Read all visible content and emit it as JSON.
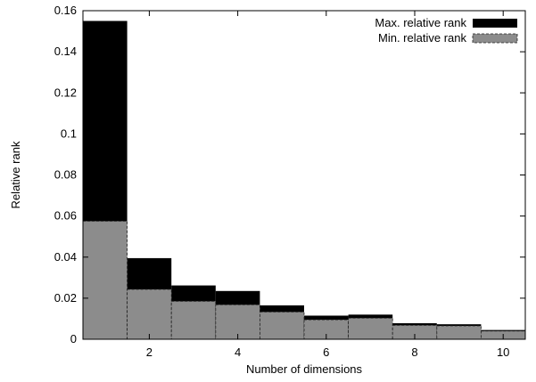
{
  "chart_data": {
    "type": "bar",
    "xlabel": "Number of dimensions",
    "ylabel": "Relative rank",
    "x": [
      1,
      2,
      3,
      4,
      5,
      6,
      7,
      8,
      9,
      10
    ],
    "xlim": [
      0.5,
      10.5
    ],
    "ylim": [
      0,
      0.16
    ],
    "xticks": [
      2,
      4,
      6,
      8,
      10
    ],
    "xtick_labels": [
      "2",
      "4",
      "6",
      "8",
      "10"
    ],
    "yticks": [
      0,
      0.02,
      0.04,
      0.06,
      0.08,
      0.1,
      0.12,
      0.14,
      0.16
    ],
    "ytick_labels": [
      "0",
      "0.02",
      "0.04",
      "0.06",
      "0.08",
      "0.1",
      "0.12",
      "0.14",
      "0.16"
    ],
    "grid": false,
    "legend_position": "top-right",
    "series": [
      {
        "name": "Max. relative rank",
        "color": "#000000",
        "values": [
          0.155,
          0.0395,
          0.0262,
          0.0235,
          0.0165,
          0.0115,
          0.012,
          0.0078,
          0.0073,
          0.0045
        ]
      },
      {
        "name": "Min. relative rank",
        "color": "#8c8c8c",
        "values": [
          0.0575,
          0.0243,
          0.0185,
          0.0168,
          0.0133,
          0.0095,
          0.0103,
          0.0068,
          0.0065,
          0.004
        ]
      }
    ]
  }
}
